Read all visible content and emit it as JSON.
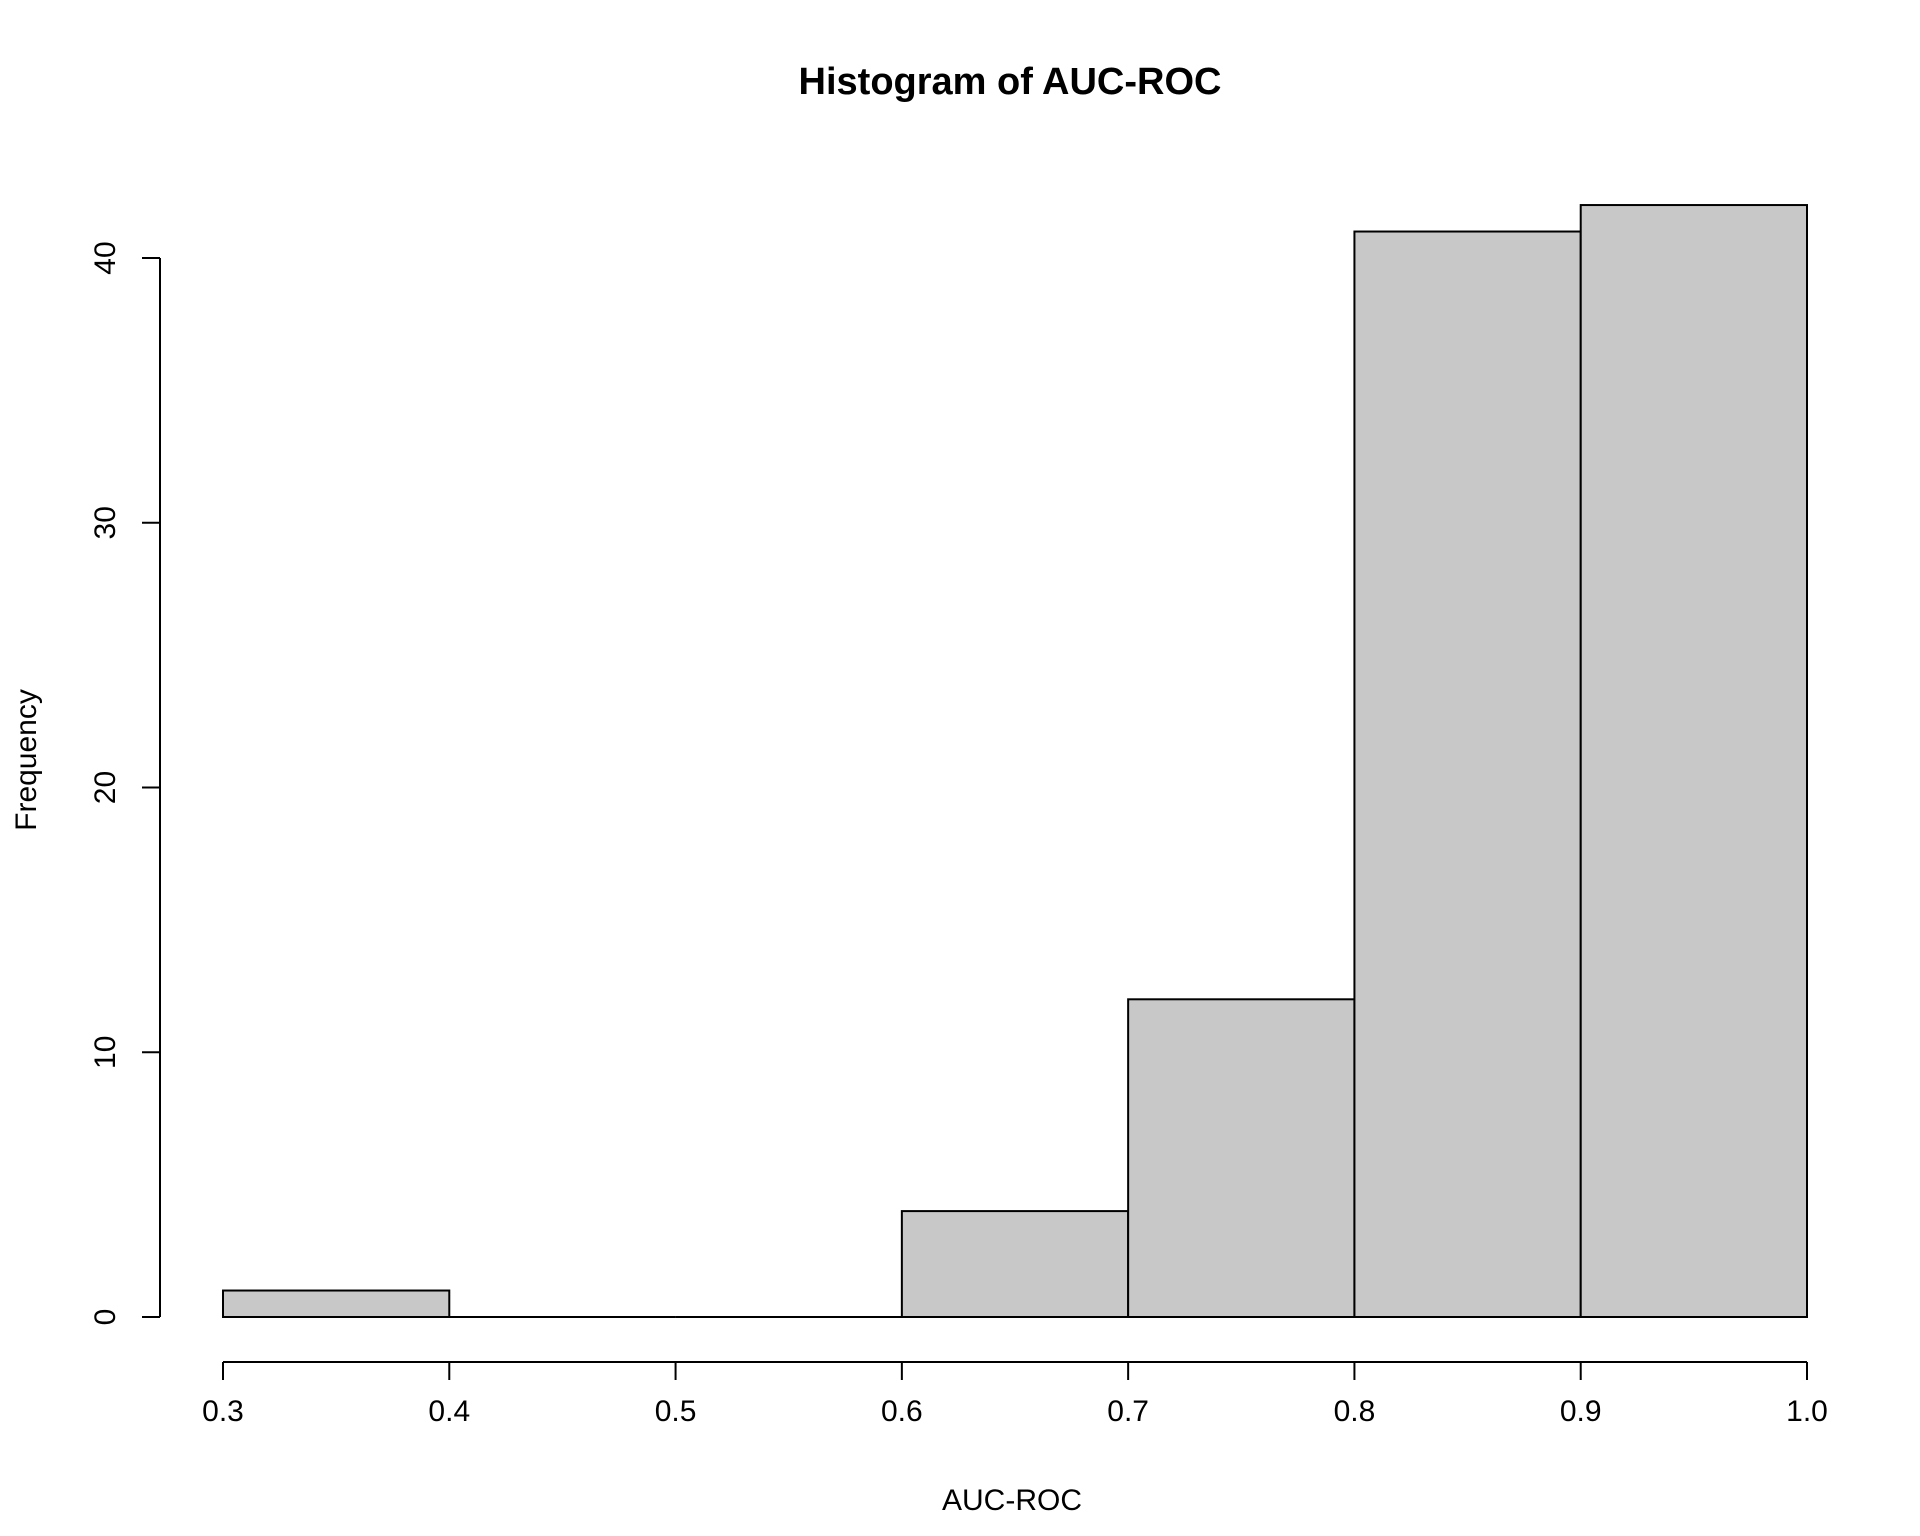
{
  "chart_data": {
    "type": "bar",
    "subtype": "histogram",
    "title": "Histogram of AUC-ROC",
    "xlabel": "AUC-ROC",
    "ylabel": "Frequency",
    "bin_edges": [
      0.3,
      0.4,
      0.5,
      0.6,
      0.7,
      0.8,
      0.9,
      1.0
    ],
    "values": [
      1,
      0,
      0,
      4,
      12,
      41,
      42
    ],
    "xlim": [
      0.3,
      1.0
    ],
    "ylim": [
      0,
      42
    ],
    "x_ticks": [
      "0.3",
      "0.4",
      "0.5",
      "0.6",
      "0.7",
      "0.8",
      "0.9",
      "1.0"
    ],
    "y_ticks": [
      "0",
      "10",
      "20",
      "30",
      "40"
    ],
    "bar_color": "#c8c8c8",
    "outline_color": "#000000",
    "grid": false,
    "legend": "none"
  }
}
